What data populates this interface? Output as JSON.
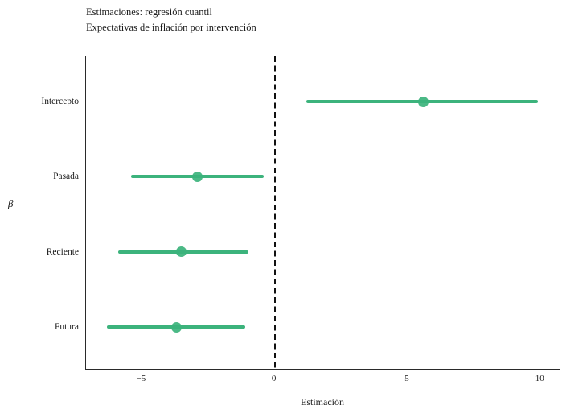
{
  "header": {
    "title": "Estimaciones: regresión cuantil",
    "subtitle": "Expectativas de inflación por intervención"
  },
  "chart_data": {
    "type": "scatter",
    "style": "coefficient-plot-horizontal-error-bars",
    "title": "Estimaciones: regresión cuantil",
    "subtitle": "Expectativas de inflación por intervención",
    "categories": [
      "Intercepto",
      "Pasada",
      "Reciente",
      "Futura"
    ],
    "series": [
      {
        "name": "Estimación",
        "values": [
          5.6,
          -2.9,
          -3.5,
          -3.7
        ],
        "ci_low": [
          1.2,
          -5.4,
          -5.9,
          -6.3
        ],
        "ci_high": [
          9.9,
          -0.4,
          -1.0,
          -1.1
        ]
      }
    ],
    "xlabel": "Estimación",
    "ylabel": "β",
    "xlim": [
      -7.1,
      10.75
    ],
    "xticks": [
      {
        "value": -5,
        "label": "−5"
      },
      {
        "value": 0,
        "label": "0"
      },
      {
        "value": 5,
        "label": "5"
      },
      {
        "value": 10,
        "label": "10"
      }
    ],
    "reference_line": {
      "x": 0,
      "line_style": "dashed",
      "color": "#111111"
    },
    "accent_color": "#3cb37c",
    "axis_color": "#2a2a2a",
    "grid": false,
    "legend_position": "none"
  }
}
